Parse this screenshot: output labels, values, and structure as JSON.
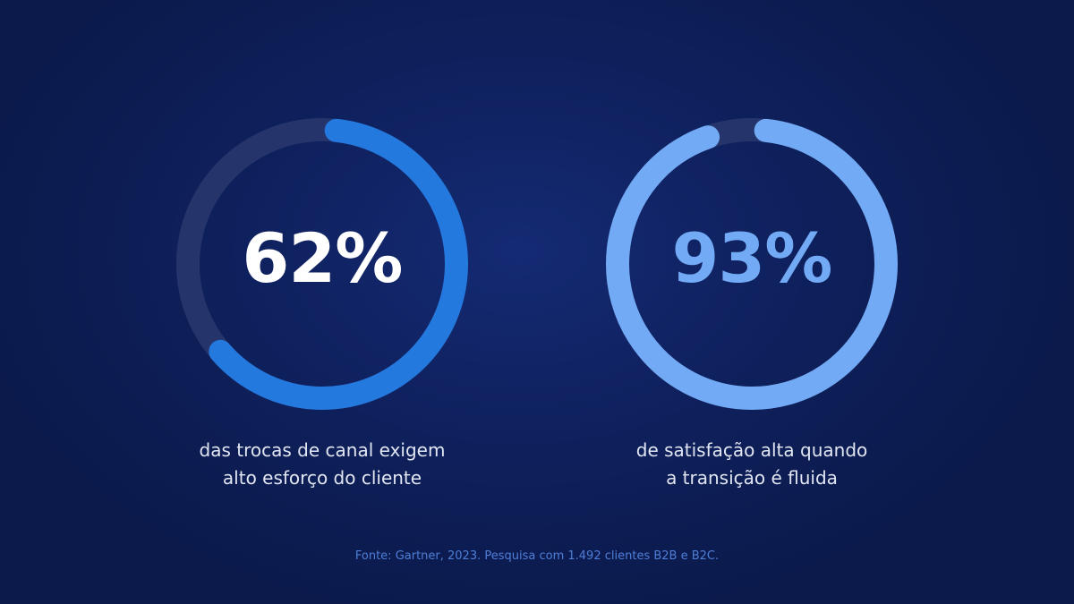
{
  "stats": [
    {
      "value": "62%",
      "percent": 62,
      "caption_lines": [
        "das trocas de canal exigem",
        "alto esforço do cliente"
      ],
      "ring_color": "#2479de",
      "track_color": "#25356b",
      "value_color": "#ffffff"
    },
    {
      "value": "93%",
      "percent": 93,
      "caption_lines": [
        "de satisfação alta quando",
        "a transição é fluida"
      ],
      "ring_color": "#72aaf5",
      "track_color": "#25356b",
      "value_color": "#72aaf5"
    }
  ],
  "source": "Fonte: Gartner, 2023. Pesquisa com 1.492 clientes B2B e B2C."
}
